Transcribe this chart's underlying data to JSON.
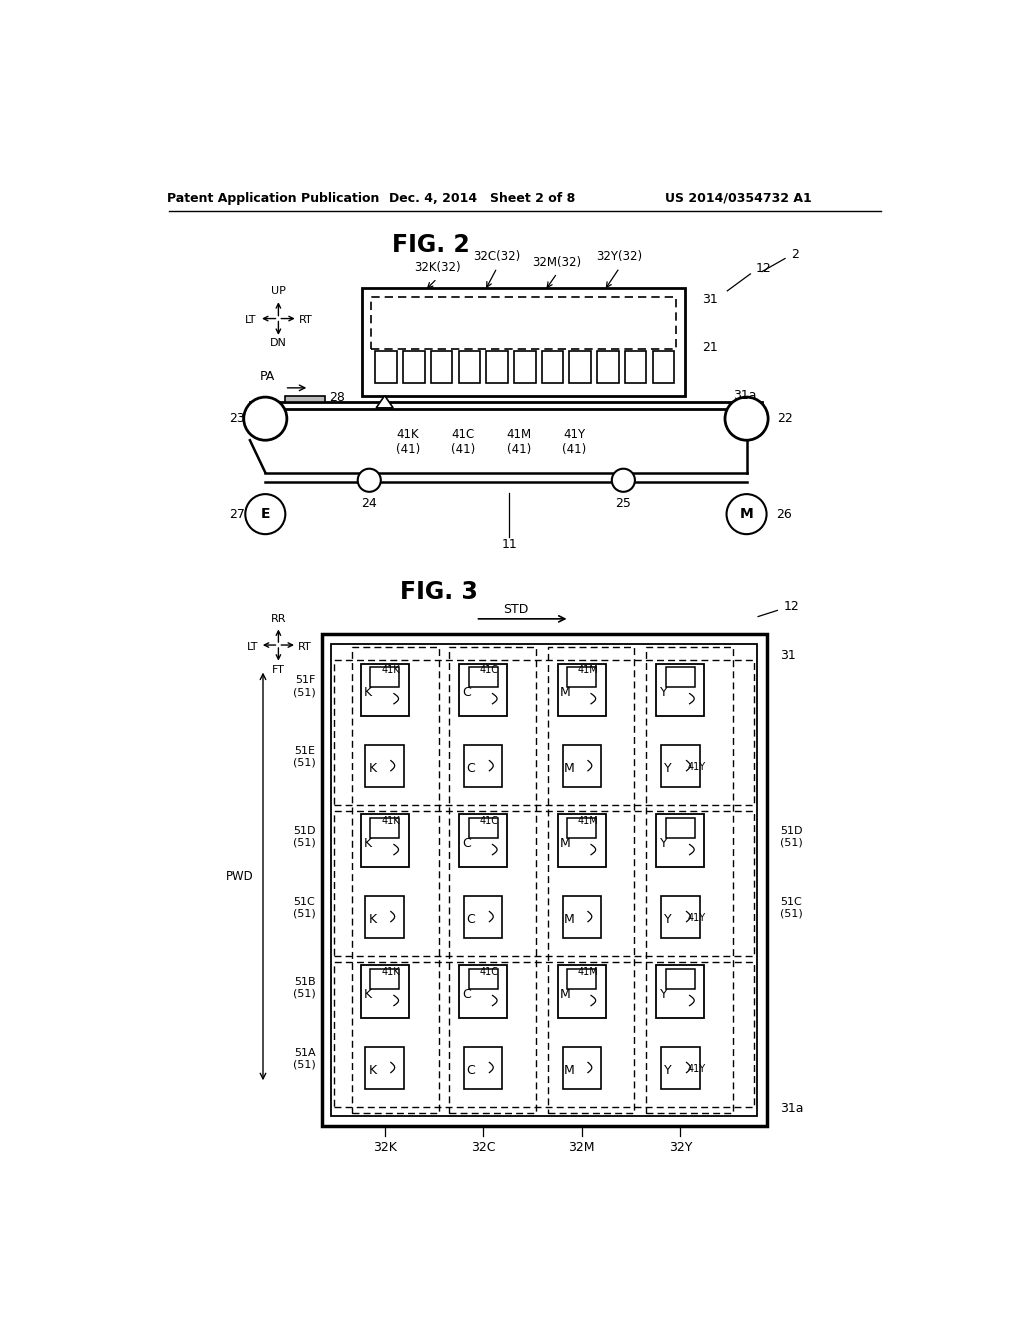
{
  "bg_color": "#ffffff",
  "header_text": "Patent Application Publication",
  "header_date": "Dec. 4, 2014",
  "header_sheet": "Sheet 2 of 8",
  "header_patent": "US 2014/0354732 A1",
  "fig2_title": "FIG. 2",
  "fig3_title": "FIG. 3"
}
